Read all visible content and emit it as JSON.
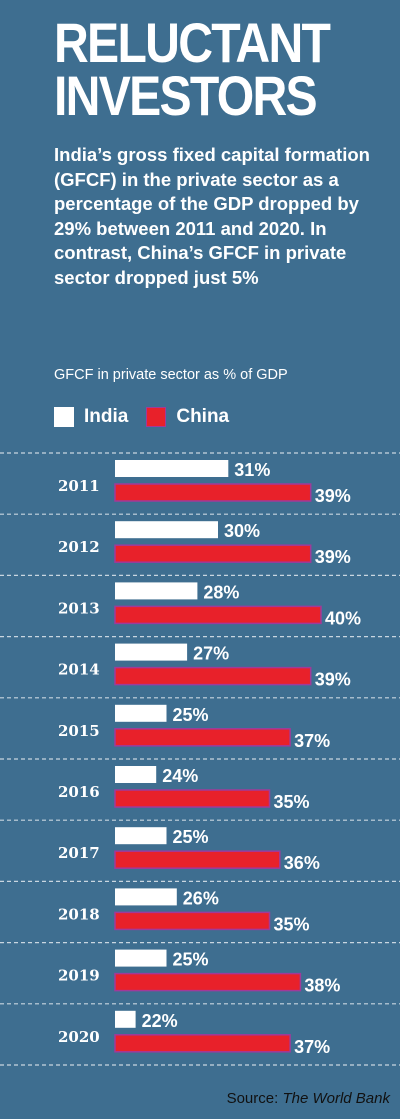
{
  "title": "RELUCTANT INVESTORS",
  "subtitle": "India’s gross fixed capital formation (GFCF) in the private sector as a percentage of the GDP dropped by 29% between 2011 and 2020. In contrast, China’s GFCF in private sector dropped just 5%",
  "source": {
    "prefix": "Source:",
    "name": "The World Bank"
  },
  "colors": {
    "background": "#3e6e90",
    "india": "#ffffff",
    "china": "#e8212a",
    "china_outline": "#a03a9a",
    "divider": "#c9d6e0"
  },
  "chart_data": {
    "type": "bar",
    "orientation": "horizontal",
    "ylabel": "GFCF in private sector as % of GDP",
    "categories": [
      "2011",
      "2012",
      "2013",
      "2014",
      "2015",
      "2016",
      "2017",
      "2018",
      "2019",
      "2020"
    ],
    "series": [
      {
        "name": "India",
        "values": [
          31,
          30,
          28,
          27,
          25,
          24,
          25,
          26,
          25,
          22
        ]
      },
      {
        "name": "China",
        "values": [
          39,
          39,
          40,
          39,
          37,
          35,
          36,
          35,
          38,
          37
        ]
      }
    ],
    "value_suffix": "%",
    "legend_position": "top-left",
    "grid": false
  }
}
